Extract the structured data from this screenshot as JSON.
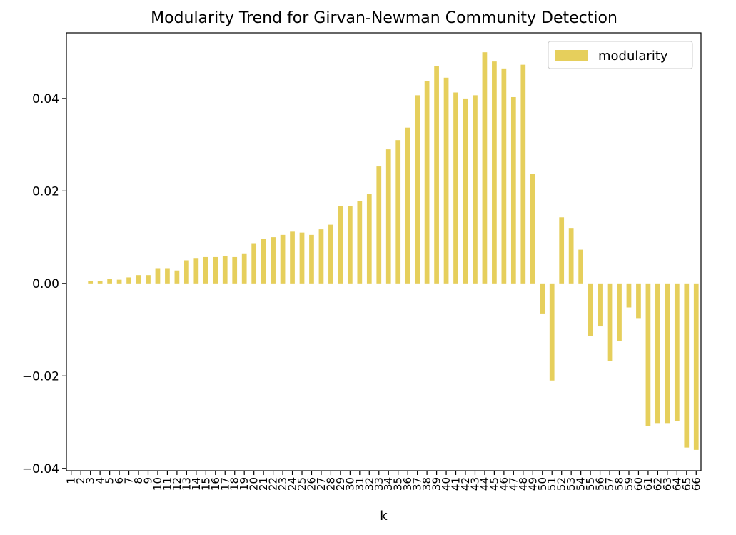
{
  "chart_data": {
    "type": "bar",
    "title": "Modularity Trend for Girvan-Newman Community Detection",
    "xlabel": "k",
    "ylabel": "",
    "ylim": [
      -0.0405,
      0.0542
    ],
    "yticks": [
      -0.04,
      -0.02,
      0.0,
      0.02,
      0.04
    ],
    "ytick_labels": [
      "−0.04",
      "−0.02",
      "0.00",
      "0.02",
      "0.04"
    ],
    "legend_position": "upper right",
    "grid": false,
    "bar_color": "#e6cf5c",
    "categories": [
      "1",
      "2",
      "3",
      "4",
      "5",
      "6",
      "7",
      "8",
      "9",
      "10",
      "11",
      "12",
      "13",
      "14",
      "15",
      "16",
      "17",
      "18",
      "19",
      "20",
      "21",
      "22",
      "23",
      "24",
      "25",
      "26",
      "27",
      "28",
      "29",
      "30",
      "31",
      "32",
      "33",
      "34",
      "35",
      "36",
      "37",
      "38",
      "39",
      "40",
      "41",
      "42",
      "43",
      "44",
      "45",
      "46",
      "47",
      "48",
      "49",
      "50",
      "51",
      "52",
      "53",
      "54",
      "55",
      "56",
      "57",
      "58",
      "59",
      "60",
      "61",
      "62",
      "63",
      "64",
      "65",
      "66"
    ],
    "series": [
      {
        "name": "modularity",
        "values": [
          0.0,
          0.0,
          0.0005,
          0.0005,
          0.0009,
          0.0008,
          0.0013,
          0.0018,
          0.0018,
          0.0033,
          0.0033,
          0.0028,
          0.005,
          0.0055,
          0.0057,
          0.0057,
          0.006,
          0.0057,
          0.0065,
          0.0087,
          0.0097,
          0.01,
          0.0105,
          0.0112,
          0.011,
          0.0105,
          0.0117,
          0.0127,
          0.0167,
          0.0168,
          0.0178,
          0.0193,
          0.0253,
          0.029,
          0.031,
          0.0337,
          0.0407,
          0.0437,
          0.047,
          0.0445,
          0.0413,
          0.04,
          0.0407,
          0.05,
          0.048,
          0.0465,
          0.0403,
          0.0473,
          0.0237,
          -0.0065,
          -0.021,
          0.0143,
          0.012,
          0.0073,
          -0.0113,
          -0.0093,
          -0.0168,
          -0.0125,
          -0.0052,
          -0.0075,
          -0.0308,
          -0.0302,
          -0.0302,
          -0.0298,
          -0.0355,
          -0.036
        ]
      }
    ]
  }
}
